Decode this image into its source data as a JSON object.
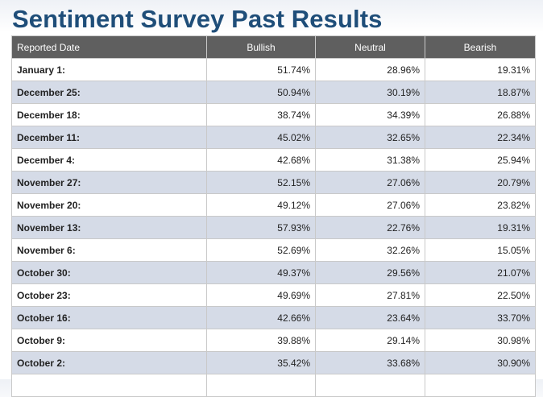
{
  "page": {
    "title": "Sentiment Survey Past Results"
  },
  "table": {
    "headers": [
      "Reported Date",
      "Bullish",
      "Neutral",
      "Bearish"
    ],
    "rows": [
      {
        "date": "January 1:",
        "bullish": "51.74%",
        "neutral": "28.96%",
        "bearish": "19.31%"
      },
      {
        "date": "December 25:",
        "bullish": "50.94%",
        "neutral": "30.19%",
        "bearish": "18.87%"
      },
      {
        "date": "December 18:",
        "bullish": "38.74%",
        "neutral": "34.39%",
        "bearish": "26.88%"
      },
      {
        "date": "December 11:",
        "bullish": "45.02%",
        "neutral": "32.65%",
        "bearish": "22.34%"
      },
      {
        "date": "December 4:",
        "bullish": "42.68%",
        "neutral": "31.38%",
        "bearish": "25.94%"
      },
      {
        "date": "November 27:",
        "bullish": "52.15%",
        "neutral": "27.06%",
        "bearish": "20.79%"
      },
      {
        "date": "November 20:",
        "bullish": "49.12%",
        "neutral": "27.06%",
        "bearish": "23.82%"
      },
      {
        "date": "November 13:",
        "bullish": "57.93%",
        "neutral": "22.76%",
        "bearish": "19.31%"
      },
      {
        "date": "November 6:",
        "bullish": "52.69%",
        "neutral": "32.26%",
        "bearish": "15.05%"
      },
      {
        "date": "October 30:",
        "bullish": "49.37%",
        "neutral": "29.56%",
        "bearish": "21.07%"
      },
      {
        "date": "October 23:",
        "bullish": "49.69%",
        "neutral": "27.81%",
        "bearish": "22.50%"
      },
      {
        "date": "October 16:",
        "bullish": "42.66%",
        "neutral": "23.64%",
        "bearish": "33.70%"
      },
      {
        "date": "October 9:",
        "bullish": "39.88%",
        "neutral": "29.14%",
        "bearish": "30.98%"
      },
      {
        "date": "October 2:",
        "bullish": "35.42%",
        "neutral": "33.68%",
        "bearish": "30.90%"
      },
      {
        "date": "",
        "bullish": "",
        "neutral": "",
        "bearish": ""
      }
    ]
  }
}
